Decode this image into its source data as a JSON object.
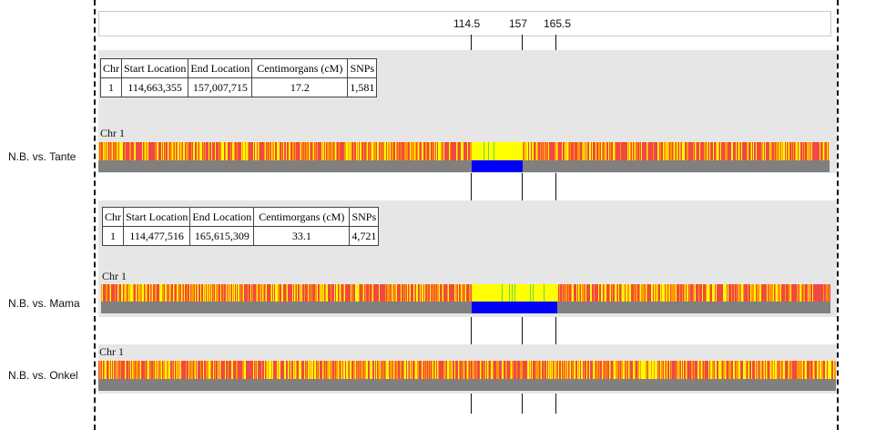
{
  "positions": [
    "114.5",
    "157",
    "165.5"
  ],
  "chr_label": "Chr 1",
  "table_headers": [
    "Chr",
    "Start Location",
    "End Location",
    "Centimorgans (cM)",
    "SNPs"
  ],
  "comparisons": [
    {
      "label": "N.B. vs. Tante",
      "segment": {
        "chr": "1",
        "start": "114,663,355",
        "end": "157,007,715",
        "cm": "17.2",
        "snps": "1,581"
      }
    },
    {
      "label": "N.B. vs. Mama",
      "segment": {
        "chr": "1",
        "start": "114,477,516",
        "end": "165,615,309",
        "cm": "33.1",
        "snps": "4,721"
      }
    },
    {
      "label": "N.B. vs. Onkel"
    }
  ],
  "colors": {
    "red": "#f04848",
    "orange": "#ff9a00",
    "yellow": "#ffff00",
    "green": "#6fd64a",
    "blue": "#0000ff",
    "gray": "#808080"
  }
}
